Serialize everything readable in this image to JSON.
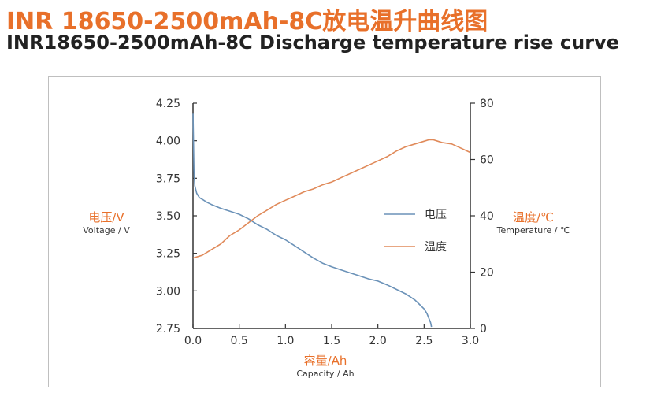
{
  "title_cn": "INR 18650-2500mAh-8C放电温升曲线图",
  "title_en": "INR18650-2500mAh-8C Discharge temperature rise curve",
  "colors": {
    "accent": "#e8702a",
    "voltage": "#6b92b8",
    "temperature": "#e08a5a",
    "axis": "#333333"
  },
  "chart_data": {
    "type": "line",
    "title": "INR18650-2500mAh-8C Discharge temperature rise curve",
    "xlabel_cn": "容量/Ah",
    "xlabel": "Capacity / Ah",
    "ylabel_left_cn": "电压/V",
    "ylabel_left": "Voltage / V",
    "ylabel_right_cn": "温度/℃",
    "ylabel_right": "Temperature / ℃",
    "xlim": [
      0.0,
      3.0
    ],
    "ylim_left": [
      2.75,
      4.25
    ],
    "ylim_right": [
      0,
      80
    ],
    "x_ticks": [
      "0.0",
      "0.5",
      "1.0",
      "1.5",
      "2.0",
      "2.5",
      "3.0"
    ],
    "y_left_ticks": [
      "2.75",
      "3.00",
      "3.25",
      "3.50",
      "3.75",
      "4.00",
      "4.25"
    ],
    "y_right_ticks": [
      "0",
      "20",
      "40",
      "60",
      "80"
    ],
    "grid": false,
    "legend_position": "center-right",
    "series": [
      {
        "name": "电压",
        "axis": "left",
        "x": [
          0.0,
          0.005,
          0.01,
          0.02,
          0.04,
          0.07,
          0.1,
          0.15,
          0.2,
          0.3,
          0.4,
          0.5,
          0.6,
          0.7,
          0.8,
          0.9,
          1.0,
          1.1,
          1.2,
          1.3,
          1.4,
          1.5,
          1.6,
          1.7,
          1.8,
          1.9,
          2.0,
          2.1,
          2.2,
          2.3,
          2.4,
          2.45,
          2.5,
          2.53,
          2.55,
          2.57,
          2.58
        ],
        "values": [
          4.18,
          4.0,
          3.8,
          3.7,
          3.65,
          3.62,
          3.61,
          3.59,
          3.575,
          3.55,
          3.53,
          3.51,
          3.48,
          3.44,
          3.41,
          3.37,
          3.34,
          3.3,
          3.26,
          3.22,
          3.185,
          3.16,
          3.14,
          3.12,
          3.1,
          3.08,
          3.065,
          3.04,
          3.01,
          2.98,
          2.94,
          2.91,
          2.88,
          2.85,
          2.82,
          2.79,
          2.76
        ]
      },
      {
        "name": "温度",
        "axis": "right",
        "x": [
          0.0,
          0.1,
          0.2,
          0.3,
          0.4,
          0.5,
          0.6,
          0.7,
          0.8,
          0.9,
          1.0,
          1.1,
          1.2,
          1.3,
          1.4,
          1.5,
          1.6,
          1.7,
          1.8,
          1.9,
          2.0,
          2.1,
          2.2,
          2.3,
          2.4,
          2.5,
          2.55,
          2.6,
          2.65,
          2.7,
          2.8,
          2.9,
          3.0
        ],
        "values": [
          25,
          26,
          28,
          30,
          33,
          35,
          37.5,
          40,
          42,
          44,
          45.5,
          47,
          48.5,
          49.5,
          51,
          52,
          53.5,
          55,
          56.5,
          58,
          59.5,
          61,
          63,
          64.5,
          65.5,
          66.5,
          67,
          67,
          66.5,
          66,
          65.5,
          64,
          62.5
        ]
      }
    ]
  }
}
